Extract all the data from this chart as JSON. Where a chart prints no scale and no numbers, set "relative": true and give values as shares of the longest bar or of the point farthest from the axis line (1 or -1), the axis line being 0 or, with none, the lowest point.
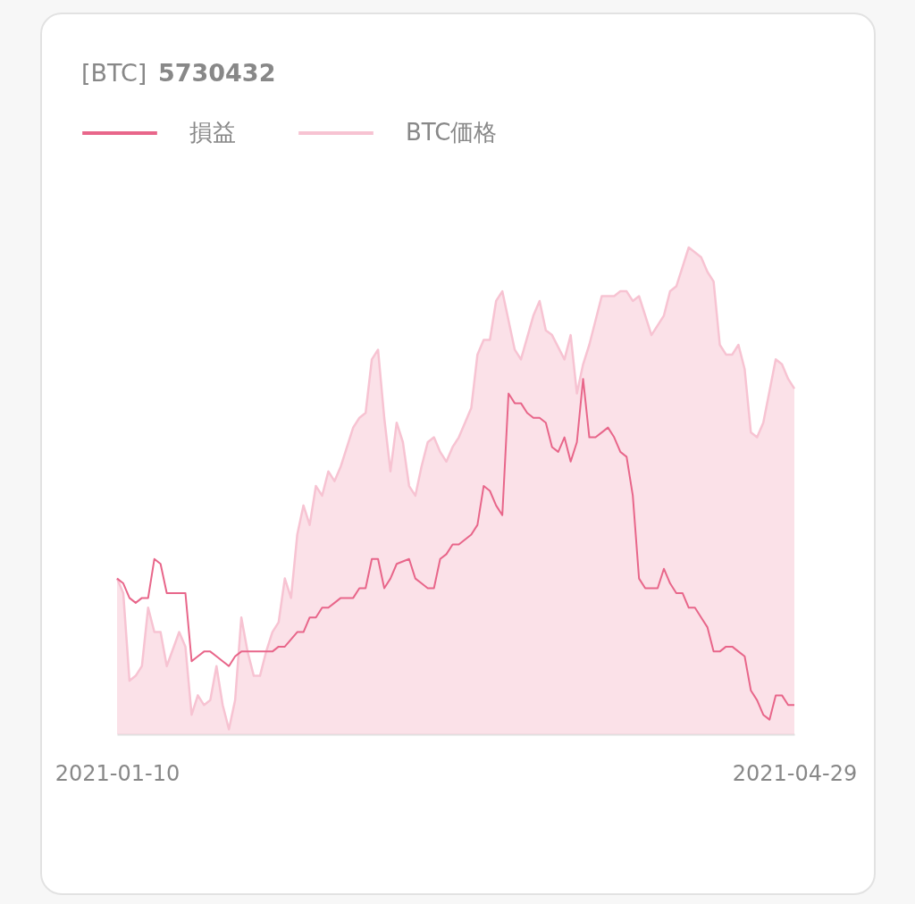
{
  "chart_data": {
    "type": "line",
    "title": "[BTC] 5730432",
    "relative": true,
    "legend": "top left",
    "grid": false,
    "tick_labels": "x",
    "xlim": [
      "2021-01-10",
      "2021-04-29"
    ],
    "xticks": [
      "2021-01-10",
      "2021-04-29"
    ],
    "series": [
      {
        "name": "損益",
        "color": "#e8668a",
        "type": "line",
        "x": [
          "2021-01-10",
          "2021-01-11",
          "2021-01-12",
          "2021-01-13",
          "2021-01-14",
          "2021-01-15",
          "2021-01-16",
          "2021-01-17",
          "2021-01-18",
          "2021-01-19",
          "2021-01-20",
          "2021-01-21",
          "2021-01-22",
          "2021-01-23",
          "2021-01-24",
          "2021-01-25",
          "2021-01-26",
          "2021-01-27",
          "2021-01-28",
          "2021-01-29",
          "2021-01-30",
          "2021-01-31",
          "2021-02-01",
          "2021-02-02",
          "2021-02-04",
          "2021-02-05",
          "2021-02-06",
          "2021-02-08",
          "2021-02-09",
          "2021-02-10",
          "2021-02-11",
          "2021-02-12",
          "2021-02-13",
          "2021-02-14",
          "2021-02-15",
          "2021-02-16",
          "2021-02-17",
          "2021-02-18",
          "2021-02-19",
          "2021-02-20",
          "2021-02-21",
          "2021-02-22",
          "2021-02-23",
          "2021-02-24",
          "2021-02-26",
          "2021-02-27",
          "2021-02-28",
          "2021-03-01",
          "2021-03-02",
          "2021-03-03",
          "2021-03-04",
          "2021-03-05",
          "2021-03-06",
          "2021-03-07",
          "2021-03-08",
          "2021-03-09",
          "2021-03-10",
          "2021-03-11",
          "2021-03-12",
          "2021-03-13",
          "2021-03-14",
          "2021-03-15",
          "2021-03-16",
          "2021-03-17",
          "2021-03-18",
          "2021-03-19",
          "2021-03-20",
          "2021-03-21",
          "2021-03-22",
          "2021-03-23",
          "2021-03-24",
          "2021-03-25",
          "2021-03-26",
          "2021-03-27",
          "2021-03-28",
          "2021-03-29",
          "2021-03-30",
          "2021-03-31",
          "2021-04-01",
          "2021-04-02",
          "2021-04-03",
          "2021-04-04",
          "2021-04-05",
          "2021-04-06",
          "2021-04-07",
          "2021-04-08",
          "2021-04-09",
          "2021-04-10",
          "2021-04-11",
          "2021-04-12",
          "2021-04-13",
          "2021-04-14",
          "2021-04-15",
          "2021-04-16",
          "2021-04-17",
          "2021-04-18",
          "2021-04-19",
          "2021-04-20",
          "2021-04-21",
          "2021-04-22",
          "2021-04-23",
          "2021-04-24",
          "2021-04-25",
          "2021-04-26",
          "2021-04-27",
          "2021-04-28",
          "2021-04-29"
        ],
        "values": [
          0.32,
          0.31,
          0.28,
          0.27,
          0.28,
          0.28,
          0.36,
          0.35,
          0.29,
          0.29,
          0.29,
          0.29,
          0.15,
          0.16,
          0.17,
          0.17,
          0.16,
          0.15,
          0.14,
          0.16,
          0.17,
          0.17,
          0.17,
          0.17,
          0.17,
          0.18,
          0.18,
          0.21,
          0.21,
          0.24,
          0.24,
          0.26,
          0.26,
          0.27,
          0.28,
          0.28,
          0.28,
          0.3,
          0.3,
          0.36,
          0.36,
          0.3,
          0.32,
          0.35,
          0.36,
          0.32,
          0.31,
          0.3,
          0.3,
          0.36,
          0.37,
          0.39,
          0.39,
          0.4,
          0.41,
          0.43,
          0.51,
          0.5,
          0.47,
          0.45,
          0.7,
          0.68,
          0.68,
          0.66,
          0.65,
          0.65,
          0.64,
          0.59,
          0.58,
          0.61,
          0.56,
          0.6,
          0.73,
          0.61,
          0.61,
          0.62,
          0.63,
          0.61,
          0.58,
          0.57,
          0.49,
          0.32,
          0.3,
          0.3,
          0.3,
          0.34,
          0.31,
          0.29,
          0.29,
          0.26,
          0.26,
          0.24,
          0.22,
          0.17,
          0.17,
          0.18,
          0.18,
          0.17,
          0.16,
          0.09,
          0.07,
          0.04,
          0.03,
          0.08,
          0.08,
          0.06,
          0.06
        ]
      },
      {
        "name": "BTC価格",
        "color": "#f7c3d2",
        "type": "area",
        "x": [
          "2021-01-10",
          "2021-01-11",
          "2021-01-12",
          "2021-01-13",
          "2021-01-14",
          "2021-01-15",
          "2021-01-16",
          "2021-01-17",
          "2021-01-18",
          "2021-01-20",
          "2021-01-21",
          "2021-01-22",
          "2021-01-23",
          "2021-01-24",
          "2021-01-25",
          "2021-01-26",
          "2021-01-27",
          "2021-01-28",
          "2021-01-29",
          "2021-01-30",
          "2021-01-31",
          "2021-02-01",
          "2021-02-02",
          "2021-02-03",
          "2021-02-04",
          "2021-02-05",
          "2021-02-06",
          "2021-02-07",
          "2021-02-08",
          "2021-02-09",
          "2021-02-10",
          "2021-02-11",
          "2021-02-12",
          "2021-02-13",
          "2021-02-14",
          "2021-02-15",
          "2021-02-17",
          "2021-02-18",
          "2021-02-19",
          "2021-02-20",
          "2021-02-21",
          "2021-02-22",
          "2021-02-23",
          "2021-02-24",
          "2021-02-25",
          "2021-02-26",
          "2021-02-27",
          "2021-02-28",
          "2021-03-01",
          "2021-03-02",
          "2021-03-03",
          "2021-03-04",
          "2021-03-05",
          "2021-03-06",
          "2021-03-07",
          "2021-03-08",
          "2021-03-09",
          "2021-03-10",
          "2021-03-11",
          "2021-03-12",
          "2021-03-13",
          "2021-03-15",
          "2021-03-16",
          "2021-03-18",
          "2021-03-19",
          "2021-03-20",
          "2021-03-21",
          "2021-03-23",
          "2021-03-24",
          "2021-03-25",
          "2021-03-26",
          "2021-03-27",
          "2021-03-28",
          "2021-03-29",
          "2021-03-31",
          "2021-04-01",
          "2021-04-02",
          "2021-04-03",
          "2021-04-04",
          "2021-04-06",
          "2021-04-08",
          "2021-04-09",
          "2021-04-10",
          "2021-04-11",
          "2021-04-12",
          "2021-04-13",
          "2021-04-14",
          "2021-04-15",
          "2021-04-16",
          "2021-04-17",
          "2021-04-18",
          "2021-04-19",
          "2021-04-20",
          "2021-04-21",
          "2021-04-22",
          "2021-04-23",
          "2021-04-24",
          "2021-04-26",
          "2021-04-27",
          "2021-04-28",
          "2021-04-29"
        ],
        "values": [
          0.32,
          0.29,
          0.11,
          0.12,
          0.14,
          0.26,
          0.21,
          0.21,
          0.14,
          0.21,
          0.18,
          0.04,
          0.08,
          0.06,
          0.07,
          0.14,
          0.06,
          0.01,
          0.07,
          0.24,
          0.17,
          0.12,
          0.12,
          0.17,
          0.21,
          0.23,
          0.32,
          0.28,
          0.41,
          0.47,
          0.43,
          0.51,
          0.49,
          0.54,
          0.52,
          0.55,
          0.63,
          0.65,
          0.66,
          0.77,
          0.79,
          0.65,
          0.54,
          0.64,
          0.6,
          0.51,
          0.49,
          0.55,
          0.6,
          0.61,
          0.58,
          0.56,
          0.59,
          0.61,
          0.64,
          0.67,
          0.78,
          0.81,
          0.81,
          0.89,
          0.91,
          0.79,
          0.77,
          0.86,
          0.89,
          0.83,
          0.82,
          0.77,
          0.82,
          0.7,
          0.76,
          0.8,
          0.85,
          0.9,
          0.9,
          0.91,
          0.91,
          0.89,
          0.9,
          0.82,
          0.86,
          0.91,
          0.92,
          0.96,
          1,
          0.99,
          0.98,
          0.95,
          0.93,
          0.8,
          0.78,
          0.78,
          0.8,
          0.75,
          0.62,
          0.61,
          0.64,
          0.77,
          0.76,
          0.73,
          0.71
        ]
      }
    ]
  }
}
